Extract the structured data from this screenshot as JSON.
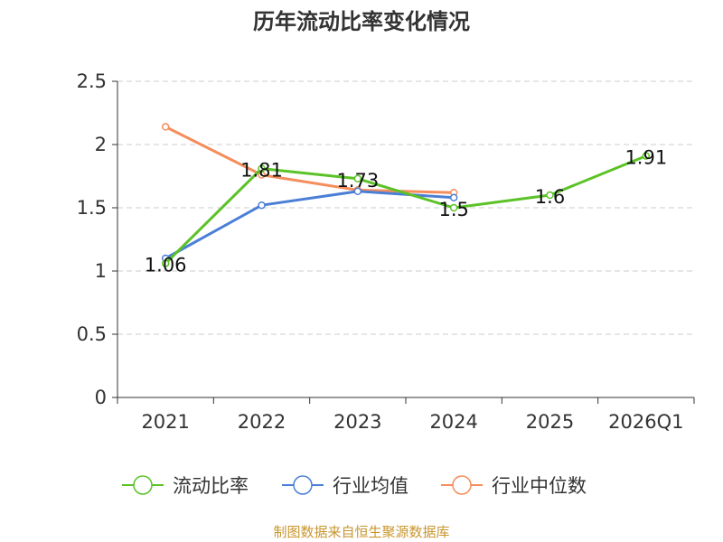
{
  "chart_data": {
    "type": "line",
    "title": "历年流动比率变化情况",
    "categories": [
      "2021",
      "2022",
      "2023",
      "2024",
      "2025",
      "2026Q1"
    ],
    "ylim": [
      0,
      2.5
    ],
    "yticks": [
      "0",
      "0.5",
      "1",
      "1.5",
      "2",
      "2.5"
    ],
    "grid": true,
    "legend_position": "bottom",
    "series": [
      {
        "name": "流动比率",
        "color": "#5bc227",
        "values": [
          1.06,
          1.81,
          1.73,
          1.5,
          1.6,
          1.91
        ],
        "labels": [
          "1.06",
          "1.81",
          "1.73",
          "1.5",
          "1.6",
          "1.91"
        ]
      },
      {
        "name": "行业均值",
        "color": "#4b7fd6",
        "values": [
          1.1,
          1.52,
          1.63,
          1.58,
          null,
          null
        ]
      },
      {
        "name": "行业中位数",
        "color": "#f58d5c",
        "values": [
          2.14,
          1.76,
          1.64,
          1.62,
          null,
          null
        ]
      }
    ]
  },
  "source_text": "制图数据来自恒生聚源数据库",
  "source_color": "#c8962e"
}
